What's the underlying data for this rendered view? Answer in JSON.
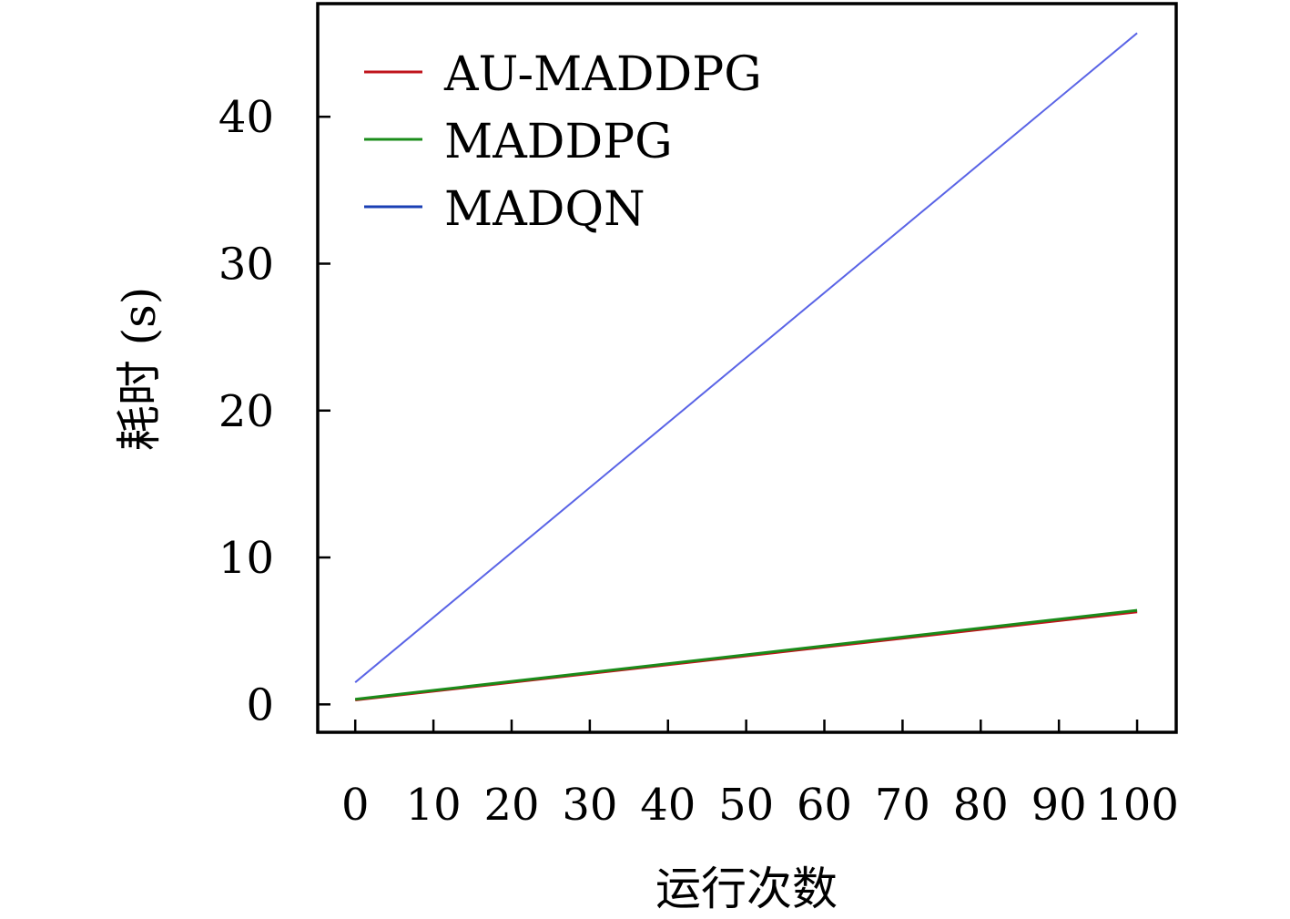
{
  "chart_data": {
    "type": "line",
    "title": "",
    "xlabel": "运行次数",
    "ylabel": "耗时 (s)",
    "xlim": [
      -4.8,
      105
    ],
    "ylim": [
      -1.9,
      47.7
    ],
    "xticks": [
      0,
      10,
      20,
      30,
      40,
      50,
      60,
      70,
      80,
      90,
      100
    ],
    "yticks": [
      0,
      10,
      20,
      30,
      40
    ],
    "grid": false,
    "legend_position": "top-left",
    "x": [
      0,
      100
    ],
    "series": [
      {
        "name": "AU-MADDPG",
        "color": "#c0141c",
        "values": [
          0.3,
          6.3
        ]
      },
      {
        "name": "MADDPG",
        "color": "#1a8c1a",
        "values": [
          0.35,
          6.4
        ]
      },
      {
        "name": "MADQN",
        "color": "#5a64e6",
        "legend_color": "#1a3fb4",
        "values": [
          1.5,
          45.7
        ]
      }
    ]
  }
}
